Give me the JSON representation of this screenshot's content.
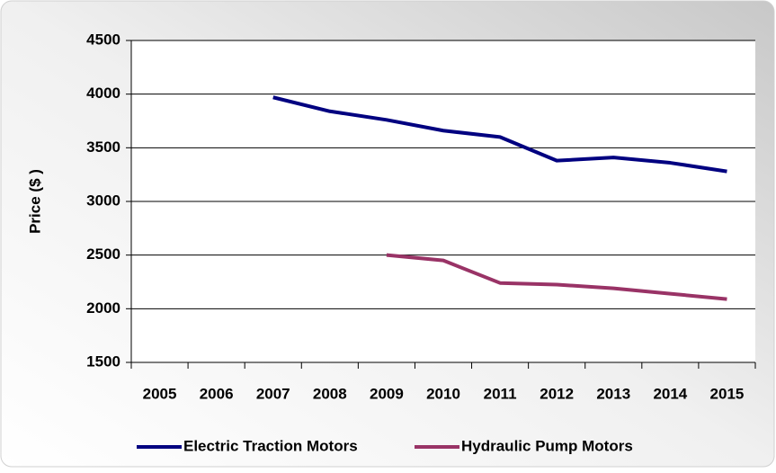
{
  "chart_data": {
    "type": "line",
    "y_label": "Price ($ )",
    "categories": [
      "2005",
      "2006",
      "2007",
      "2008",
      "2009",
      "2010",
      "2011",
      "2012",
      "2013",
      "2014",
      "2015"
    ],
    "series": [
      {
        "name": "Electric Traction Motors",
        "color": "#000080",
        "values": [
          null,
          null,
          3970,
          3840,
          3760,
          3660,
          3600,
          3380,
          3410,
          3360,
          3280
        ]
      },
      {
        "name": "Hydraulic Pump Motors",
        "color": "#993366",
        "values": [
          null,
          null,
          null,
          null,
          2500,
          2450,
          2240,
          2225,
          2190,
          2140,
          2090
        ]
      }
    ],
    "ylim": [
      1500,
      4500
    ],
    "yticks": [
      1500,
      2000,
      2500,
      3000,
      3500,
      4000,
      4500
    ],
    "grid": true,
    "legend": "bottom"
  }
}
